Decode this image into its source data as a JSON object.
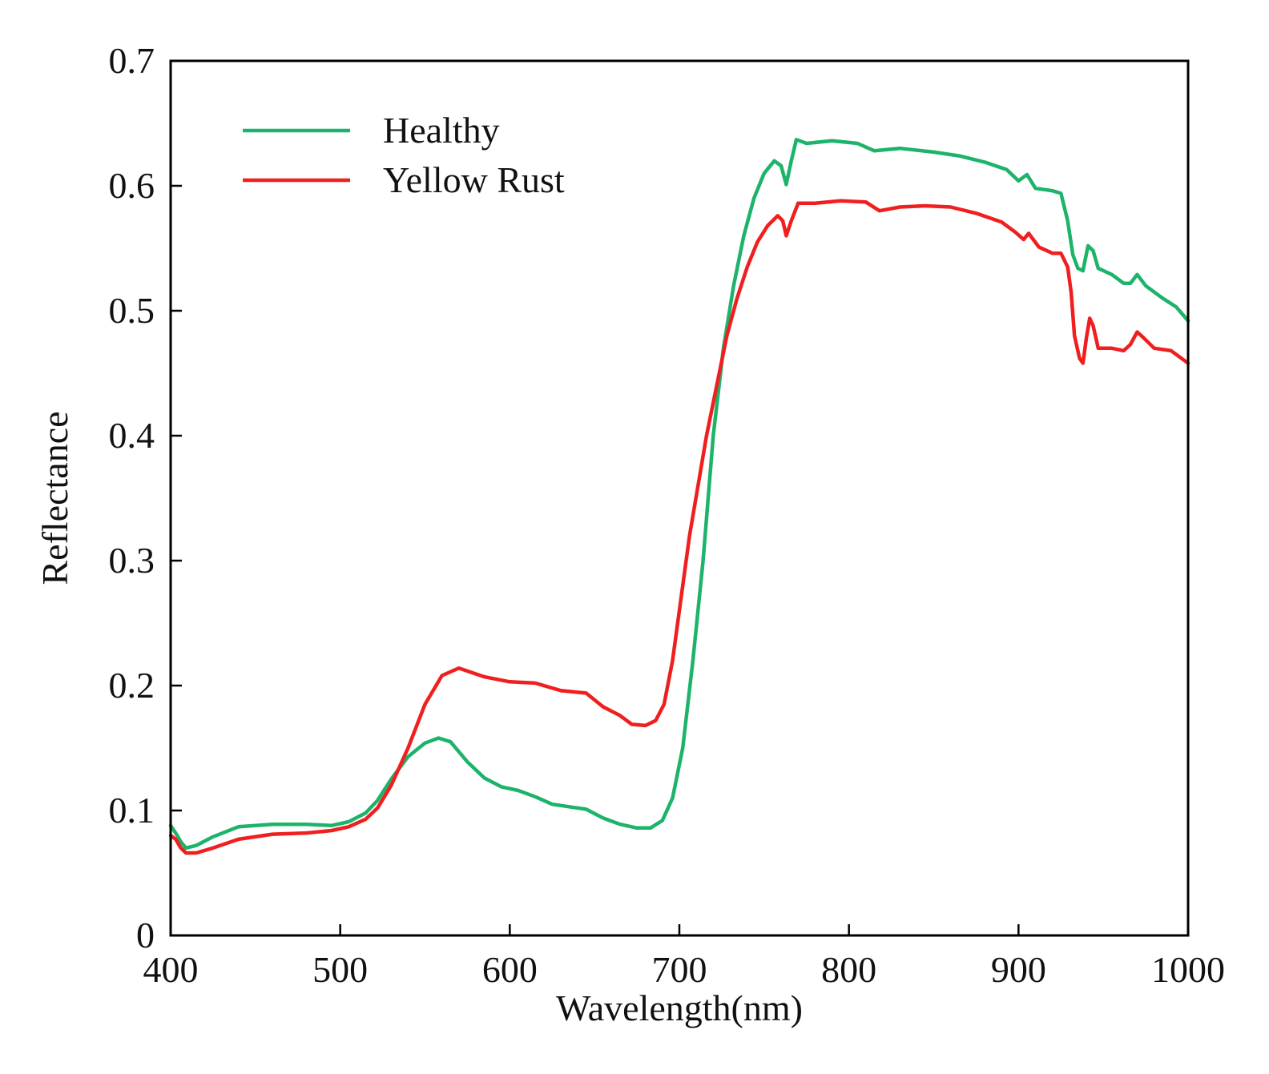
{
  "chart_data": {
    "type": "line",
    "title": "",
    "xlabel": "Wavelength(nm)",
    "ylabel": "Reflectance",
    "xlim": [
      400,
      1000
    ],
    "ylim": [
      0,
      0.7
    ],
    "xticks": [
      400,
      500,
      600,
      700,
      800,
      900,
      1000
    ],
    "yticks": [
      0,
      0.1,
      0.2,
      0.3,
      0.4,
      0.5,
      0.6,
      0.7
    ],
    "xtick_labels": [
      "400",
      "500",
      "600",
      "700",
      "800",
      "900",
      "1000"
    ],
    "ytick_labels": [
      "0",
      "0.1",
      "0.2",
      "0.3",
      "0.4",
      "0.5",
      "0.6",
      "0.7"
    ],
    "grid": false,
    "legend": "top-left",
    "series": [
      {
        "name": "Healthy",
        "color": "#1db36b",
        "points": [
          [
            400,
            0.088
          ],
          [
            403,
            0.082
          ],
          [
            406,
            0.075
          ],
          [
            409,
            0.07
          ],
          [
            415,
            0.072
          ],
          [
            425,
            0.079
          ],
          [
            440,
            0.087
          ],
          [
            460,
            0.089
          ],
          [
            480,
            0.089
          ],
          [
            495,
            0.088
          ],
          [
            505,
            0.091
          ],
          [
            515,
            0.098
          ],
          [
            522,
            0.108
          ],
          [
            530,
            0.125
          ],
          [
            540,
            0.143
          ],
          [
            550,
            0.154
          ],
          [
            558,
            0.158
          ],
          [
            565,
            0.155
          ],
          [
            575,
            0.139
          ],
          [
            585,
            0.126
          ],
          [
            595,
            0.119
          ],
          [
            605,
            0.116
          ],
          [
            615,
            0.111
          ],
          [
            625,
            0.105
          ],
          [
            635,
            0.103
          ],
          [
            645,
            0.101
          ],
          [
            655,
            0.094
          ],
          [
            665,
            0.089
          ],
          [
            675,
            0.086
          ],
          [
            683,
            0.086
          ],
          [
            690,
            0.092
          ],
          [
            696,
            0.11
          ],
          [
            702,
            0.15
          ],
          [
            708,
            0.22
          ],
          [
            714,
            0.3
          ],
          [
            720,
            0.4
          ],
          [
            726,
            0.47
          ],
          [
            732,
            0.52
          ],
          [
            738,
            0.56
          ],
          [
            744,
            0.59
          ],
          [
            750,
            0.61
          ],
          [
            756,
            0.62
          ],
          [
            760,
            0.616
          ],
          [
            763,
            0.601
          ],
          [
            766,
            0.62
          ],
          [
            769,
            0.637
          ],
          [
            775,
            0.634
          ],
          [
            790,
            0.636
          ],
          [
            805,
            0.634
          ],
          [
            815,
            0.628
          ],
          [
            830,
            0.63
          ],
          [
            850,
            0.627
          ],
          [
            865,
            0.624
          ],
          [
            880,
            0.619
          ],
          [
            893,
            0.613
          ],
          [
            900,
            0.604
          ],
          [
            905,
            0.609
          ],
          [
            910,
            0.598
          ],
          [
            920,
            0.596
          ],
          [
            925,
            0.594
          ],
          [
            929,
            0.572
          ],
          [
            932,
            0.545
          ],
          [
            935,
            0.534
          ],
          [
            938,
            0.532
          ],
          [
            941,
            0.552
          ],
          [
            944,
            0.548
          ],
          [
            947,
            0.534
          ],
          [
            955,
            0.529
          ],
          [
            962,
            0.522
          ],
          [
            966,
            0.522
          ],
          [
            970,
            0.529
          ],
          [
            975,
            0.52
          ],
          [
            985,
            0.51
          ],
          [
            993,
            0.503
          ],
          [
            1000,
            0.492
          ]
        ]
      },
      {
        "name": "Yellow Rust",
        "color": "#f01f1f",
        "points": [
          [
            400,
            0.08
          ],
          [
            403,
            0.077
          ],
          [
            406,
            0.07
          ],
          [
            409,
            0.066
          ],
          [
            415,
            0.066
          ],
          [
            425,
            0.07
          ],
          [
            440,
            0.077
          ],
          [
            460,
            0.081
          ],
          [
            480,
            0.082
          ],
          [
            495,
            0.084
          ],
          [
            505,
            0.087
          ],
          [
            515,
            0.093
          ],
          [
            522,
            0.102
          ],
          [
            530,
            0.12
          ],
          [
            540,
            0.15
          ],
          [
            550,
            0.185
          ],
          [
            560,
            0.208
          ],
          [
            570,
            0.214
          ],
          [
            585,
            0.207
          ],
          [
            600,
            0.203
          ],
          [
            615,
            0.202
          ],
          [
            630,
            0.196
          ],
          [
            645,
            0.194
          ],
          [
            655,
            0.183
          ],
          [
            665,
            0.176
          ],
          [
            672,
            0.169
          ],
          [
            680,
            0.168
          ],
          [
            686,
            0.172
          ],
          [
            691,
            0.185
          ],
          [
            696,
            0.22
          ],
          [
            701,
            0.27
          ],
          [
            706,
            0.32
          ],
          [
            711,
            0.36
          ],
          [
            716,
            0.4
          ],
          [
            722,
            0.44
          ],
          [
            728,
            0.48
          ],
          [
            734,
            0.51
          ],
          [
            740,
            0.535
          ],
          [
            746,
            0.555
          ],
          [
            752,
            0.568
          ],
          [
            758,
            0.576
          ],
          [
            761,
            0.572
          ],
          [
            763,
            0.56
          ],
          [
            766,
            0.572
          ],
          [
            770,
            0.586
          ],
          [
            780,
            0.586
          ],
          [
            795,
            0.588
          ],
          [
            810,
            0.587
          ],
          [
            818,
            0.58
          ],
          [
            830,
            0.583
          ],
          [
            845,
            0.584
          ],
          [
            860,
            0.583
          ],
          [
            875,
            0.578
          ],
          [
            890,
            0.571
          ],
          [
            898,
            0.563
          ],
          [
            903,
            0.557
          ],
          [
            906,
            0.562
          ],
          [
            912,
            0.551
          ],
          [
            920,
            0.546
          ],
          [
            925,
            0.546
          ],
          [
            929,
            0.535
          ],
          [
            931,
            0.515
          ],
          [
            933,
            0.48
          ],
          [
            936,
            0.462
          ],
          [
            938,
            0.458
          ],
          [
            940,
            0.478
          ],
          [
            942,
            0.494
          ],
          [
            944,
            0.488
          ],
          [
            947,
            0.47
          ],
          [
            955,
            0.47
          ],
          [
            962,
            0.468
          ],
          [
            966,
            0.473
          ],
          [
            970,
            0.483
          ],
          [
            974,
            0.478
          ],
          [
            980,
            0.47
          ],
          [
            990,
            0.468
          ],
          [
            1000,
            0.458
          ]
        ]
      }
    ]
  }
}
